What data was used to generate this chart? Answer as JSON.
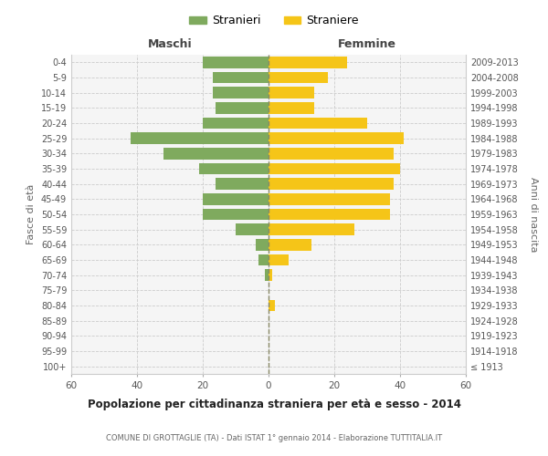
{
  "age_groups": [
    "100+",
    "95-99",
    "90-94",
    "85-89",
    "80-84",
    "75-79",
    "70-74",
    "65-69",
    "60-64",
    "55-59",
    "50-54",
    "45-49",
    "40-44",
    "35-39",
    "30-34",
    "25-29",
    "20-24",
    "15-19",
    "10-14",
    "5-9",
    "0-4"
  ],
  "birth_years": [
    "≤ 1913",
    "1914-1918",
    "1919-1923",
    "1924-1928",
    "1929-1933",
    "1934-1938",
    "1939-1943",
    "1944-1948",
    "1949-1953",
    "1954-1958",
    "1959-1963",
    "1964-1968",
    "1969-1973",
    "1974-1978",
    "1979-1983",
    "1984-1988",
    "1989-1993",
    "1994-1998",
    "1999-2003",
    "2004-2008",
    "2009-2013"
  ],
  "maschi": [
    0,
    0,
    0,
    0,
    0,
    0,
    1,
    3,
    4,
    10,
    20,
    20,
    16,
    21,
    32,
    42,
    20,
    16,
    17,
    17,
    20
  ],
  "femmine": [
    0,
    0,
    0,
    0,
    2,
    0,
    1,
    6,
    13,
    26,
    37,
    37,
    38,
    40,
    38,
    41,
    30,
    14,
    14,
    18,
    24
  ],
  "male_color": "#7faa5e",
  "female_color": "#f5c518",
  "title": "Popolazione per cittadinanza straniera per età e sesso - 2014",
  "subtitle": "COMUNE DI GROTTAGLIE (TA) - Dati ISTAT 1° gennaio 2014 - Elaborazione TUTTITALIA.IT",
  "xlabel_left": "Maschi",
  "xlabel_right": "Femmine",
  "ylabel_left": "Fasce di età",
  "ylabel_right": "Anni di nascita",
  "legend_male": "Stranieri",
  "legend_female": "Straniere",
  "xlim": 60,
  "background_color": "#ffffff",
  "plot_bg_color": "#f5f5f5",
  "grid_color": "#cccccc"
}
